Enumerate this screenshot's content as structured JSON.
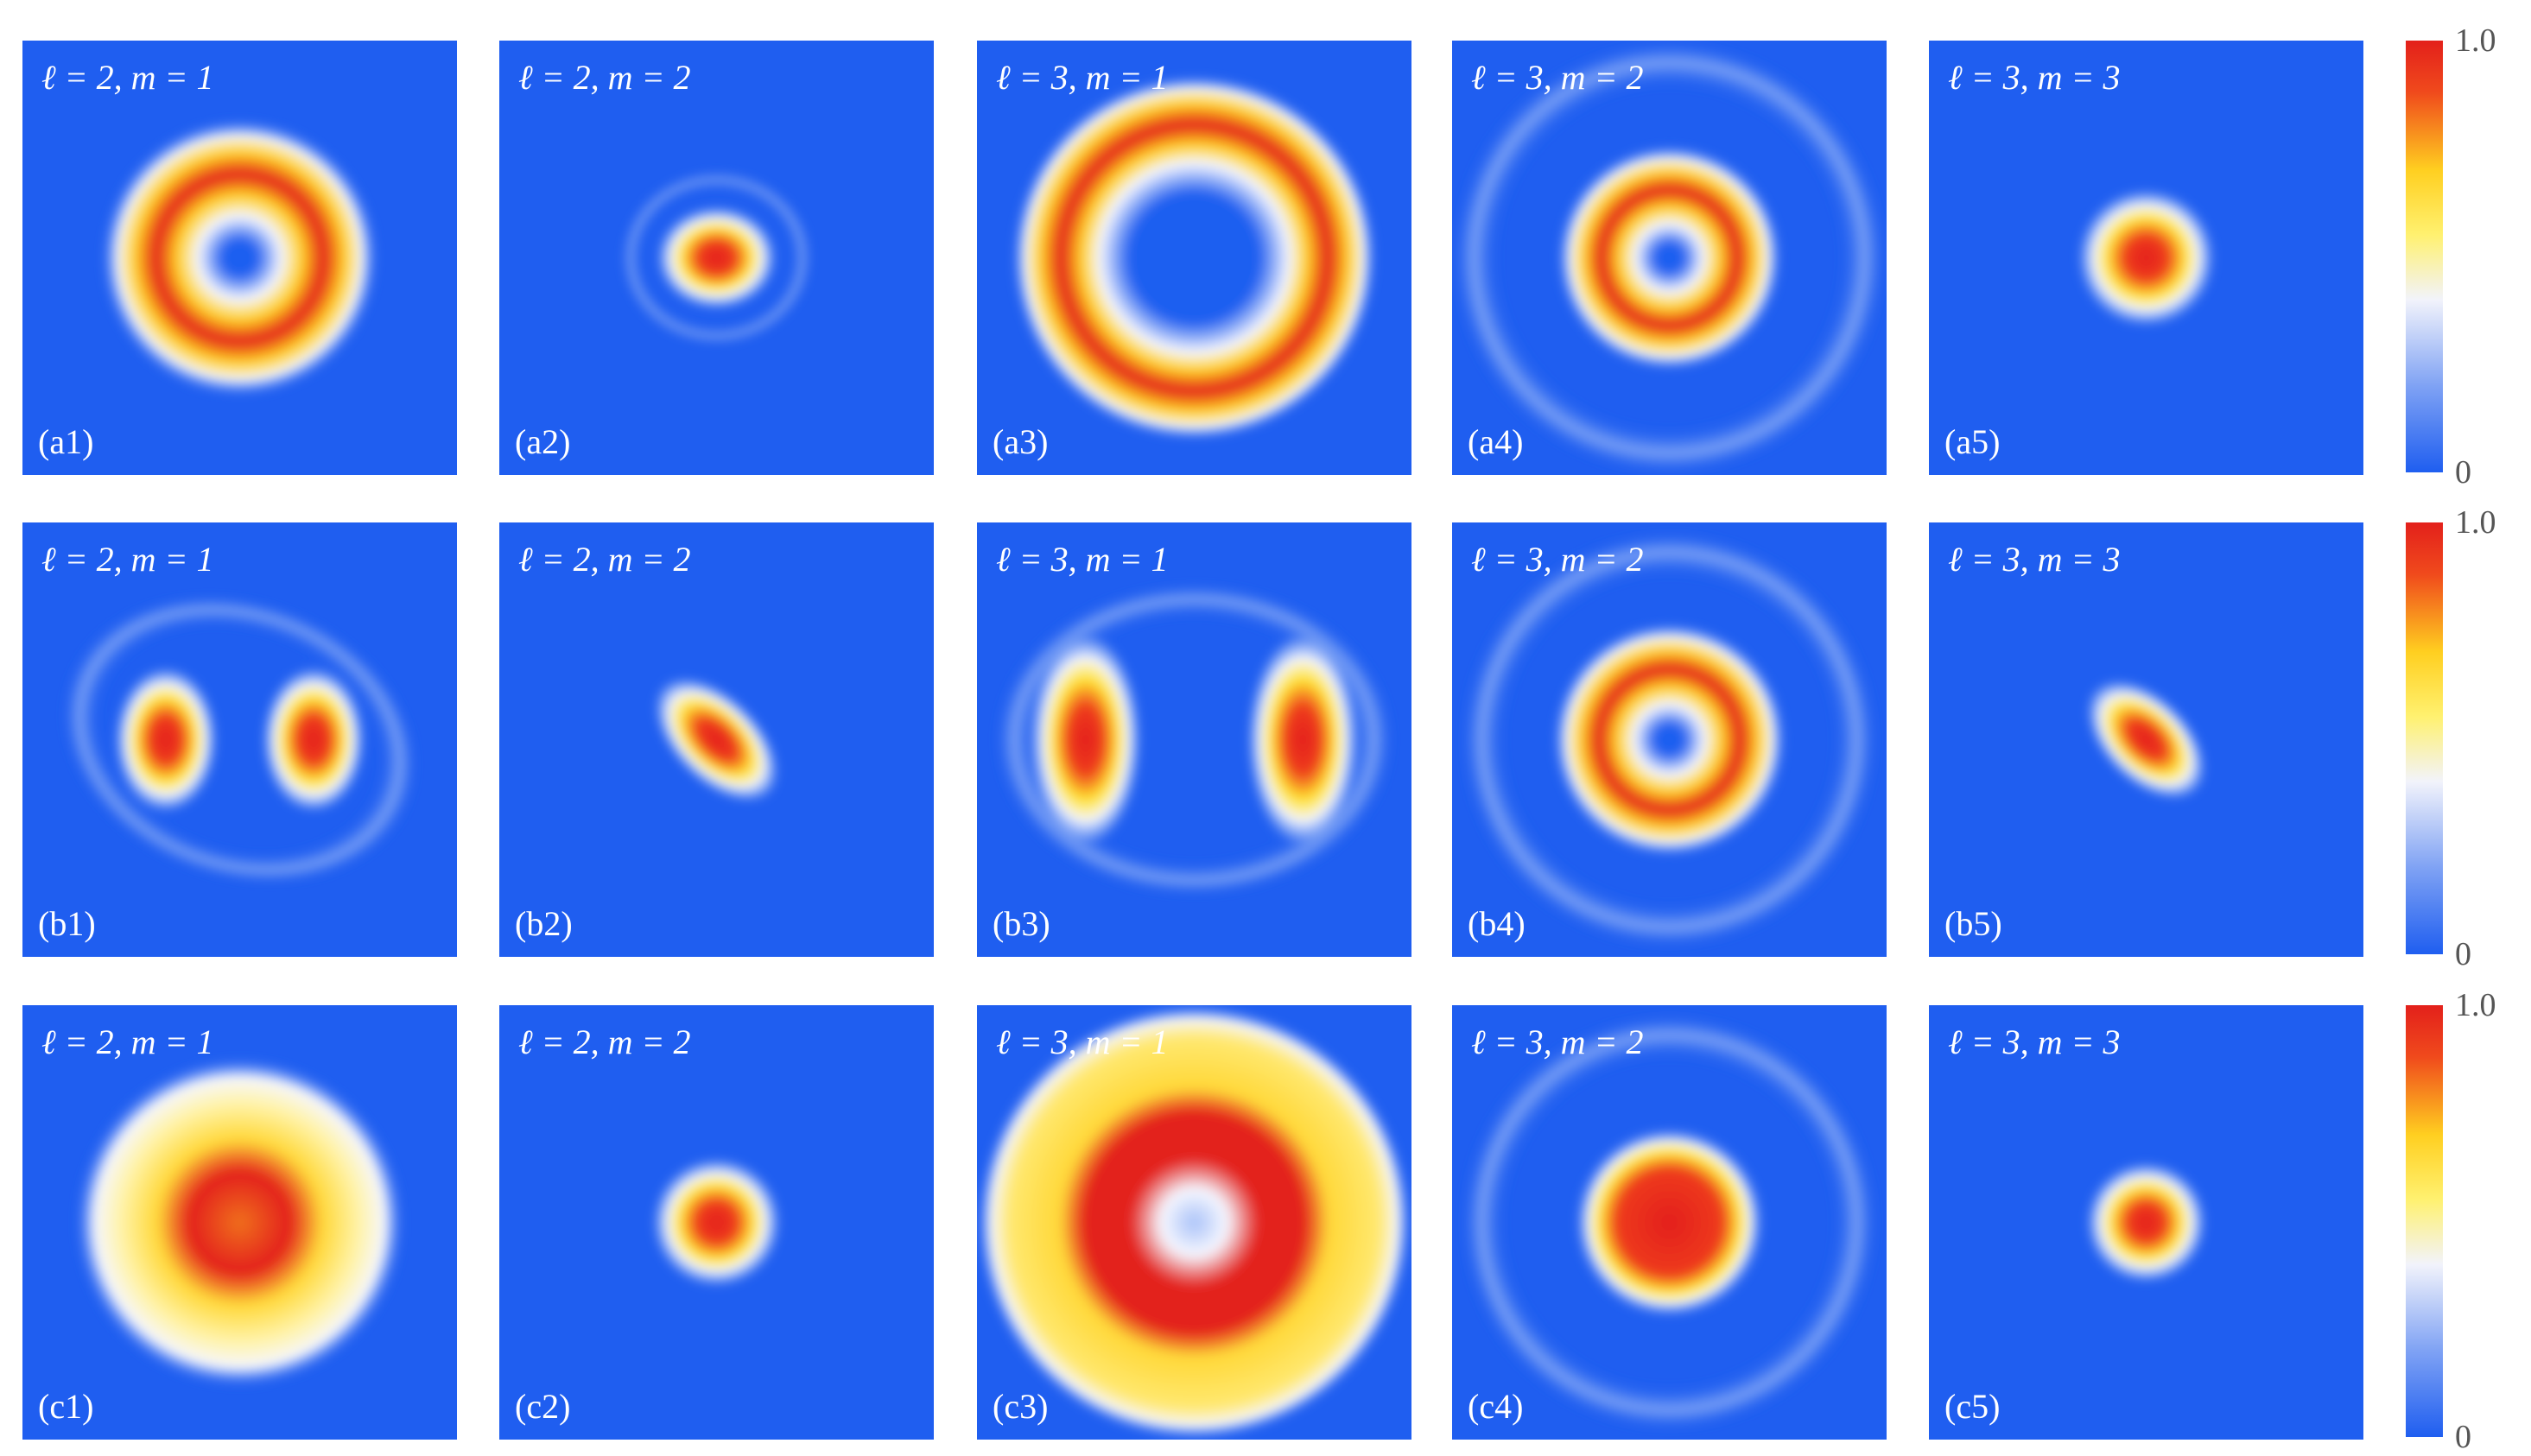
{
  "panels": [
    [
      {
        "title": "ℓ = 2, m = 1",
        "label": "(a1)"
      },
      {
        "title": "ℓ = 2, m = 2",
        "label": "(a2)"
      },
      {
        "title": "ℓ = 3, m = 1",
        "label": "(a3)"
      },
      {
        "title": "ℓ = 3, m = 2",
        "label": "(a4)"
      },
      {
        "title": "ℓ = 3, m = 3",
        "label": "(a5)"
      }
    ],
    [
      {
        "title": "ℓ = 2, m = 1",
        "label": "(b1)"
      },
      {
        "title": "ℓ = 2, m = 2",
        "label": "(b2)"
      },
      {
        "title": "ℓ = 3, m = 1",
        "label": "(b3)"
      },
      {
        "title": "ℓ = 3, m = 2",
        "label": "(b4)"
      },
      {
        "title": "ℓ = 3, m = 3",
        "label": "(b5)"
      }
    ],
    [
      {
        "title": "ℓ = 2, m = 1",
        "label": "(c1)"
      },
      {
        "title": "ℓ = 2, m = 2",
        "label": "(c2)"
      },
      {
        "title": "ℓ = 3, m = 1",
        "label": "(c3)"
      },
      {
        "title": "ℓ = 3, m = 2",
        "label": "(c4)"
      },
      {
        "title": "ℓ = 3, m = 3",
        "label": "(c5)"
      }
    ]
  ],
  "colorbars": [
    {
      "max": "1.0",
      "min": "0"
    },
    {
      "max": "1.0",
      "min": "0"
    },
    {
      "max": "1.0",
      "min": "0"
    }
  ]
}
